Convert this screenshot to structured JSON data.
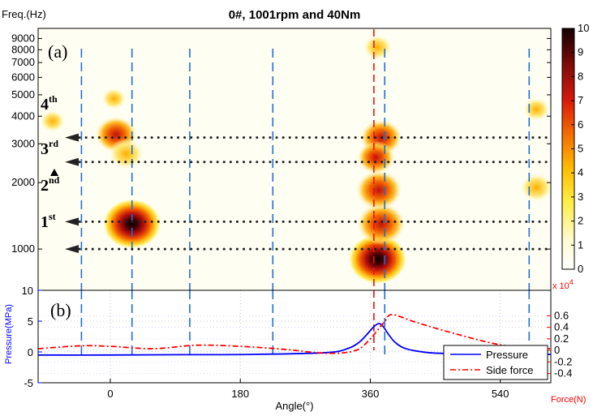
{
  "chart_data": [
    {
      "panel": "(a)",
      "type": "heatmap",
      "title": "0#, 1001rpm and 40Nm",
      "ylabel": "Freq.(Hz)",
      "yscale": "log",
      "ylim": [
        650,
        10000
      ],
      "xlim": [
        -100,
        610
      ],
      "yticks": [
        "1000",
        "2000",
        "3000",
        "4000",
        "5000",
        "6000",
        "7000",
        "8000",
        "9000"
      ],
      "ytick_values": [
        1000,
        2000,
        3000,
        4000,
        5000,
        6000,
        7000,
        8000,
        9000
      ],
      "colorbar": {
        "range": [
          0,
          10
        ],
        "ticks": [
          "0",
          "1",
          "2",
          "3",
          "4",
          "5",
          "6",
          "7",
          "8",
          "9",
          "10"
        ]
      },
      "hotspots": [
        {
          "angle": 30,
          "freq": 1300,
          "intensity": 10
        },
        {
          "angle": 370,
          "freq": 900,
          "intensity": 10
        },
        {
          "angle": 375,
          "freq": 1300,
          "intensity": 7.5
        },
        {
          "angle": 372,
          "freq": 1850,
          "intensity": 7
        },
        {
          "angle": 8,
          "freq": 3300,
          "intensity": 6
        },
        {
          "angle": 375,
          "freq": 3200,
          "intensity": 6
        },
        {
          "angle": 22,
          "freq": 2700,
          "intensity": 4.5
        },
        {
          "angle": 368,
          "freq": 2600,
          "intensity": 5
        },
        {
          "angle": 590,
          "freq": 1900,
          "intensity": 4
        },
        {
          "angle": 590,
          "freq": 4300,
          "intensity": 2.5
        },
        {
          "angle": 5,
          "freq": 4800,
          "intensity": 2
        },
        {
          "angle": 370,
          "freq": 8200,
          "intensity": 3
        },
        {
          "angle": -80,
          "freq": 3800,
          "intensity": 2
        }
      ],
      "harmonic_lines": [
        {
          "label": "1st",
          "freq": 1300
        },
        {
          "label": "2nd",
          "freq": 2000
        },
        {
          "label": "3rd",
          "freq": 3100
        },
        {
          "label": "4th",
          "freq": 4200
        }
      ],
      "dotted_lines_freq": [
        1000,
        1330,
        2480,
        3200
      ],
      "vertical_dashed_angles": [
        -40,
        30,
        110,
        225,
        380,
        580
      ],
      "vertical_red_angle": 365
    },
    {
      "panel": "(b)",
      "type": "line",
      "xlabel": "Angle(°)",
      "ylabel": "Pressure(MPa)",
      "y2label": "Force(N)",
      "xlim": [
        -100,
        610
      ],
      "ylim": [
        -5,
        10
      ],
      "y2lim": [
        -0.56,
        1.04
      ],
      "y2_exponent": "x 10",
      "y2_exponent_power": "4",
      "xticks": [
        "0",
        "180",
        "360",
        "540"
      ],
      "xtick_values": [
        0,
        180,
        360,
        540
      ],
      "yticks": [
        "-5",
        "0",
        "5",
        "10"
      ],
      "ytick_values": [
        -5,
        0,
        5,
        10
      ],
      "y2ticks": [
        "-0.4",
        "-0.2",
        "0",
        "0.2",
        "0.4",
        "0.6"
      ],
      "y2tick_values": [
        -0.4,
        -0.2,
        0,
        0.2,
        0.4,
        0.6
      ],
      "series": [
        {
          "name": "Pressure",
          "axis": "left",
          "color": "#0000ff",
          "style": "solid",
          "x": [
            -100,
            0,
            100,
            200,
            300,
            330,
            345,
            355,
            365,
            372,
            378,
            385,
            395,
            410,
            440,
            480,
            540,
            610
          ],
          "y": [
            -0.5,
            -0.5,
            -0.45,
            -0.4,
            -0.1,
            0.6,
            1.6,
            2.8,
            4.1,
            4.6,
            4.1,
            2.9,
            1.5,
            0.5,
            -0.1,
            -0.3,
            -0.4,
            -0.4
          ]
        },
        {
          "name": "Side force",
          "axis": "right",
          "color": "#ff0000",
          "style": "dashdot",
          "x": [
            -100,
            -40,
            0,
            60,
            120,
            180,
            240,
            300,
            340,
            360,
            370,
            380,
            390,
            420,
            460,
            520,
            560,
            610
          ],
          "y": [
            0.03,
            0.08,
            0.07,
            0.03,
            0.09,
            0.07,
            0.02,
            -0.05,
            0.0,
            0.2,
            0.35,
            0.5,
            0.62,
            0.5,
            0.35,
            0.15,
            0.06,
            0.03
          ]
        }
      ],
      "legend_location": "lower-right"
    }
  ]
}
